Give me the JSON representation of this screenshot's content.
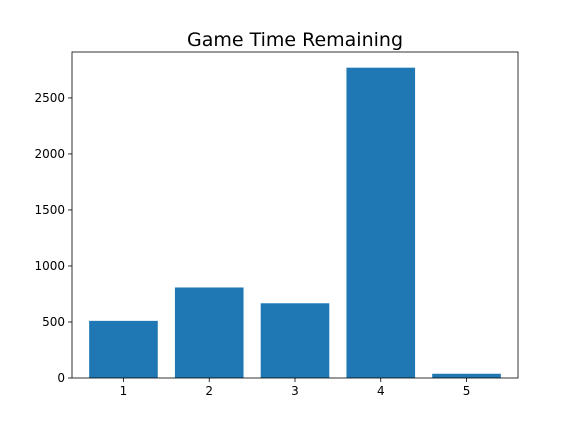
{
  "chart_data": {
    "type": "bar",
    "title": "Game Time Remaining",
    "xlabel": "",
    "ylabel": "",
    "categories": [
      "1",
      "2",
      "3",
      "4",
      "5"
    ],
    "values": [
      510,
      808,
      667,
      2770,
      38
    ],
    "ylim": [
      0,
      2910
    ],
    "yticks": [
      0,
      500,
      1000,
      1500,
      2000,
      2500
    ],
    "grid": false,
    "legend": "none",
    "bar_color": "#1f77b4"
  }
}
